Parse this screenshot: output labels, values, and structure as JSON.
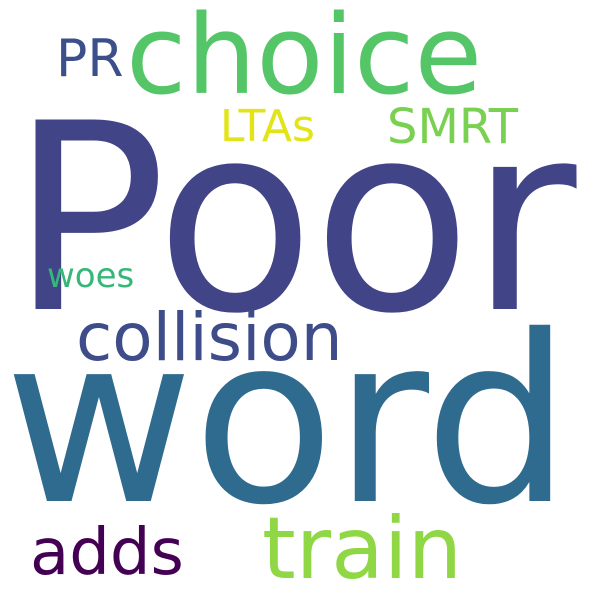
{
  "words": {
    "poor": {
      "text": "Poor",
      "color": "#414487"
    },
    "word": {
      "text": "word",
      "color": "#2f6b8e"
    },
    "choice": {
      "text": "choice",
      "color": "#55c667"
    },
    "collision": {
      "text": "collision",
      "color": "#3e4c8a"
    },
    "train": {
      "text": "train",
      "color": "#8fd744"
    },
    "adds": {
      "text": "adds",
      "color": "#440154"
    },
    "smrt": {
      "text": "SMRT",
      "color": "#7ad151"
    },
    "ltas": {
      "text": "LTAs",
      "color": "#e2e418"
    },
    "pr": {
      "text": "PR",
      "color": "#3b4f8a"
    },
    "woes": {
      "text": "woes",
      "color": "#35b779"
    }
  }
}
